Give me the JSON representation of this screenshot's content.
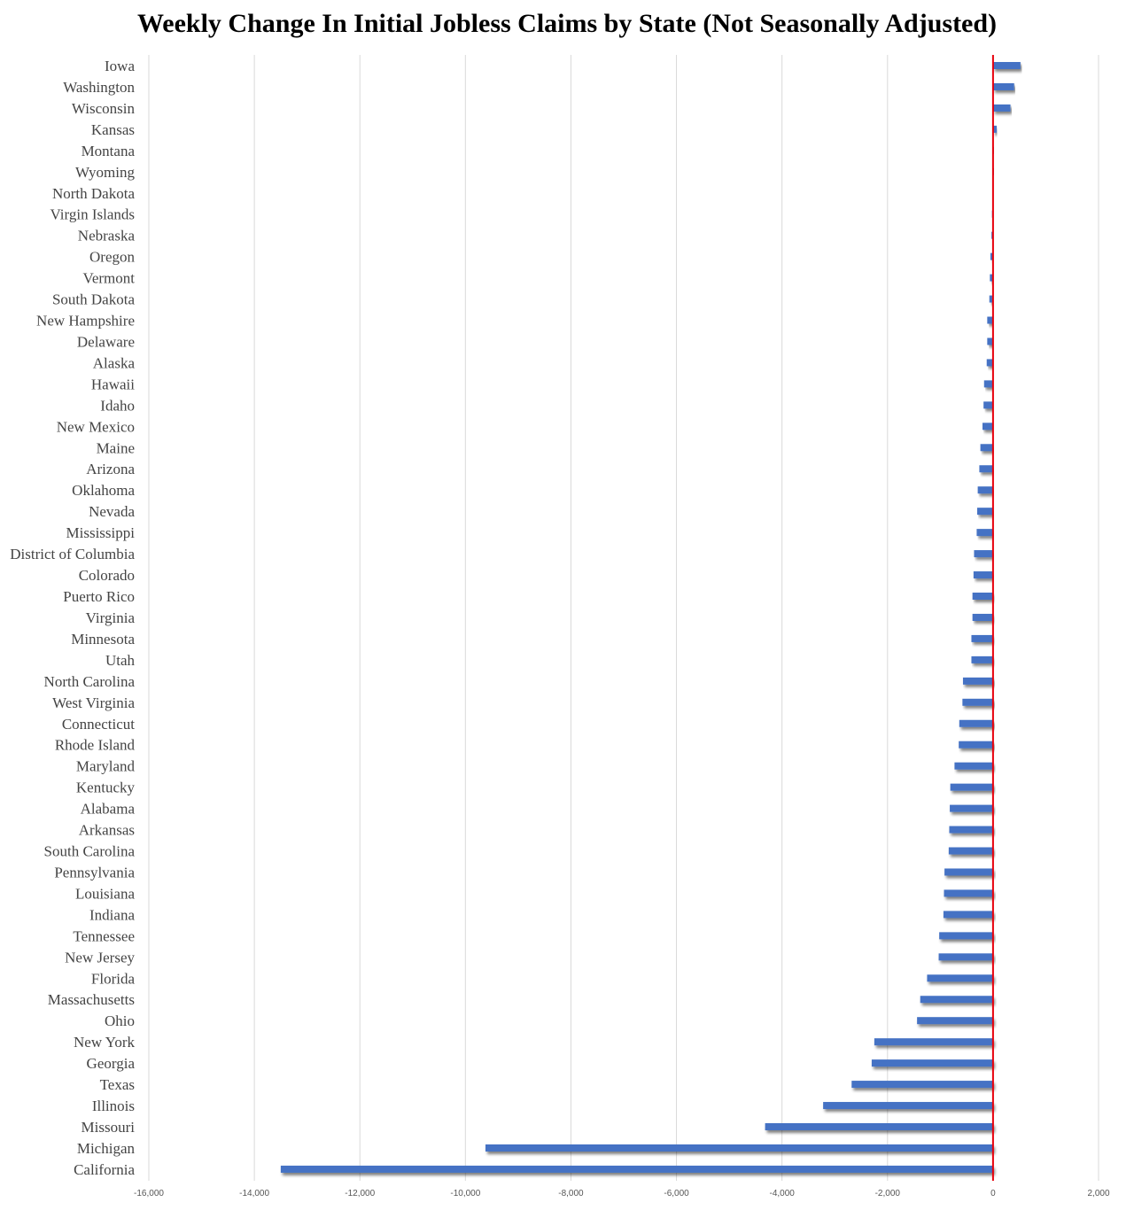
{
  "chart_data": {
    "type": "bar",
    "orientation": "horizontal",
    "title": "Weekly Change In Initial Jobless Claims by State (Not Seasonally Adjusted)",
    "xlabel": "",
    "ylabel": "",
    "xlim": [
      -16000,
      2000
    ],
    "ticks": [
      -16000,
      -14000,
      -12000,
      -10000,
      -8000,
      -6000,
      -4000,
      -2000,
      0,
      2000
    ],
    "tick_labels": [
      "-16,000",
      "-14,000",
      "-12,000",
      "-10,000",
      "-8,000",
      "-6,000",
      "-4,000",
      "-2,000",
      "0",
      "2,000"
    ],
    "grid": true,
    "legend": "none",
    "bar_color": "#4472c4",
    "zero_line_color": "#e8000b",
    "categories": [
      "Iowa",
      "Washington",
      "Wisconsin",
      "Kansas",
      "Montana",
      "Wyoming",
      "North Dakota",
      "Virgin Islands",
      "Nebraska",
      "Oregon",
      "Vermont",
      "South Dakota",
      "New Hampshire",
      "Delaware",
      "Alaska",
      "Hawaii",
      "Idaho",
      "New Mexico",
      "Maine",
      "Arizona",
      "Oklahoma",
      "Nevada",
      "Mississippi",
      "District of Columbia",
      "Colorado",
      "Puerto Rico",
      "Virginia",
      "Minnesota",
      "Utah",
      "North Carolina",
      "West Virginia",
      "Connecticut",
      "Rhode Island",
      "Maryland",
      "Kentucky",
      "Alabama",
      "Arkansas",
      "South Carolina",
      "Pennsylvania",
      "Louisiana",
      "Indiana",
      "Tennessee",
      "New Jersey",
      "Florida",
      "Massachusetts",
      "Ohio",
      "New York",
      "Georgia",
      "Texas",
      "Illinois",
      "Missouri",
      "Michigan",
      "California"
    ],
    "values": [
      520,
      400,
      330,
      70,
      5,
      3,
      0,
      -20,
      -30,
      -50,
      -60,
      -70,
      -110,
      -110,
      -120,
      -170,
      -180,
      -200,
      -240,
      -260,
      -290,
      -300,
      -310,
      -360,
      -370,
      -390,
      -390,
      -410,
      -410,
      -570,
      -580,
      -640,
      -650,
      -730,
      -810,
      -820,
      -830,
      -840,
      -920,
      -930,
      -940,
      -1020,
      -1030,
      -1250,
      -1380,
      -1440,
      -2250,
      -2300,
      -2680,
      -3220,
      -4320,
      -9620,
      -13500
    ]
  }
}
